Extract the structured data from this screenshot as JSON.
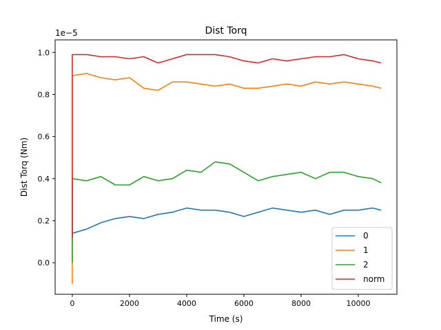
{
  "chart_data": {
    "type": "line",
    "title": "Dist Torq",
    "xlabel": "Time (s)",
    "ylabel": "Dist Torq (Nm)",
    "y_offset_label": "1e−5",
    "xlim": [
      -600,
      11350
    ],
    "ylim": [
      -0.15,
      1.06
    ],
    "xticks": [
      0,
      2000,
      4000,
      6000,
      8000,
      10000
    ],
    "xtick_labels": [
      "0",
      "2000",
      "4000",
      "6000",
      "8000",
      "10000"
    ],
    "yticks": [
      0.0,
      0.2,
      0.4,
      0.6,
      0.8,
      1.0
    ],
    "ytick_labels": [
      "0.0",
      "0.2",
      "0.4",
      "0.6",
      "0.8",
      "1.0"
    ],
    "grid": false,
    "legend_position": "lower-right",
    "x": [
      0,
      500,
      1000,
      1500,
      2000,
      2500,
      3000,
      3500,
      4000,
      4500,
      5000,
      5500,
      6000,
      6500,
      7000,
      7500,
      8000,
      8500,
      9000,
      9500,
      10000,
      10500,
      10800
    ],
    "series": [
      {
        "name": "0",
        "color": "#1f77b4",
        "start": 0.1,
        "values": [
          0.14,
          0.16,
          0.19,
          0.21,
          0.22,
          0.21,
          0.23,
          0.24,
          0.26,
          0.25,
          0.25,
          0.24,
          0.22,
          0.24,
          0.26,
          0.25,
          0.24,
          0.25,
          0.23,
          0.25,
          0.25,
          0.26,
          0.25
        ]
      },
      {
        "name": "1",
        "color": "#ff7f0e",
        "start": -0.1,
        "values": [
          0.89,
          0.9,
          0.88,
          0.87,
          0.88,
          0.83,
          0.82,
          0.86,
          0.86,
          0.85,
          0.84,
          0.85,
          0.83,
          0.83,
          0.84,
          0.85,
          0.84,
          0.86,
          0.85,
          0.86,
          0.85,
          0.84,
          0.83
        ]
      },
      {
        "name": "2",
        "color": "#2ca02c",
        "start": 0.0,
        "values": [
          0.4,
          0.39,
          0.41,
          0.37,
          0.37,
          0.41,
          0.39,
          0.4,
          0.44,
          0.43,
          0.48,
          0.47,
          0.43,
          0.39,
          0.41,
          0.42,
          0.43,
          0.4,
          0.43,
          0.43,
          0.41,
          0.4,
          0.38
        ]
      },
      {
        "name": "norm",
        "color": "#d62728",
        "start": 0.12,
        "values": [
          0.99,
          0.99,
          0.98,
          0.98,
          0.97,
          0.98,
          0.95,
          0.97,
          0.99,
          0.99,
          0.99,
          0.98,
          0.96,
          0.95,
          0.97,
          0.96,
          0.97,
          0.98,
          0.98,
          0.99,
          0.97,
          0.96,
          0.95
        ]
      }
    ]
  }
}
